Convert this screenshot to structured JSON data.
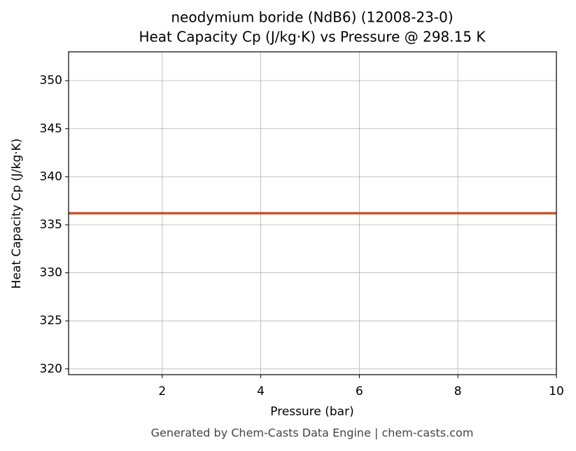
{
  "chart_data": {
    "type": "line",
    "title": "neodymium boride (NdB6) (12008-23-0)",
    "subtitle": "Heat Capacity Cp (J/kg·K) vs Pressure @ 298.15 K",
    "x_label": "Pressure (bar)",
    "y_label": "Heat Capacity Cp (J/kg·K)",
    "footer": "Generated by Chem-Casts Data Engine | chem-casts.com",
    "x": [
      0.1,
      10
    ],
    "series": [
      {
        "name": "Heat Capacity Cp",
        "color": "#c8552b",
        "values": [
          336.2,
          336.2
        ]
      }
    ],
    "xlim": [
      0.1,
      10
    ],
    "xticks": [
      2,
      4,
      6,
      8,
      10
    ],
    "ylim": [
      319.4,
      353
    ],
    "yticks": [
      320,
      325,
      330,
      335,
      340,
      345,
      350
    ],
    "grid": true
  }
}
